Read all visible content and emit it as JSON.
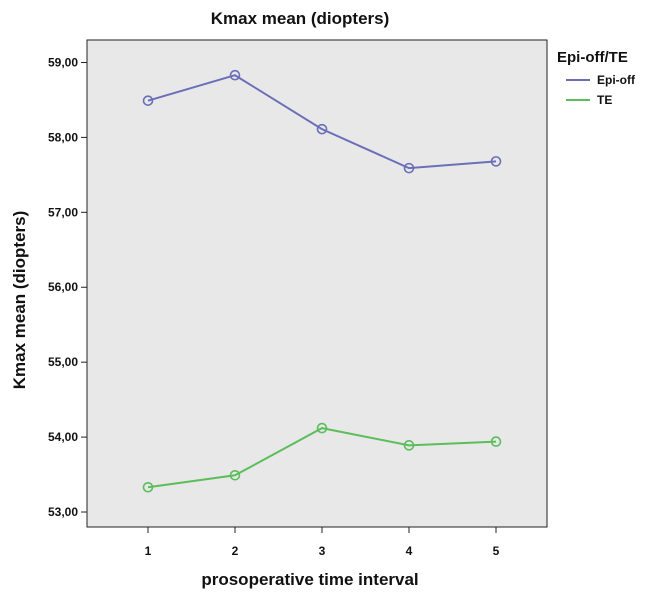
{
  "chart_data": {
    "type": "line",
    "title": "Kmax mean (diopters)",
    "xlabel": "prosoperative time interval",
    "ylabel": "Kmax mean (diopters)",
    "x": [
      1,
      2,
      3,
      4,
      5
    ],
    "x_tick_labels": [
      "1",
      "2",
      "3",
      "4",
      "5"
    ],
    "ylim": [
      52.8,
      59.3
    ],
    "y_ticks": [
      53,
      54,
      55,
      56,
      57,
      58,
      59
    ],
    "y_tick_labels": [
      "53,00",
      "54,00",
      "55,00",
      "56,00",
      "57,00",
      "58,00",
      "59,00"
    ],
    "grid": false,
    "background_color": "#e8e8e8",
    "legend": {
      "title": "Epi-off/TE",
      "placement": "right"
    },
    "series": [
      {
        "name": "Epi-off",
        "color": "#6b6fb8",
        "values": [
          58.49,
          58.83,
          58.11,
          57.59,
          57.68
        ]
      },
      {
        "name": "TE",
        "color": "#5cbd5c",
        "values": [
          53.33,
          53.49,
          54.12,
          53.89,
          53.94
        ]
      }
    ]
  }
}
